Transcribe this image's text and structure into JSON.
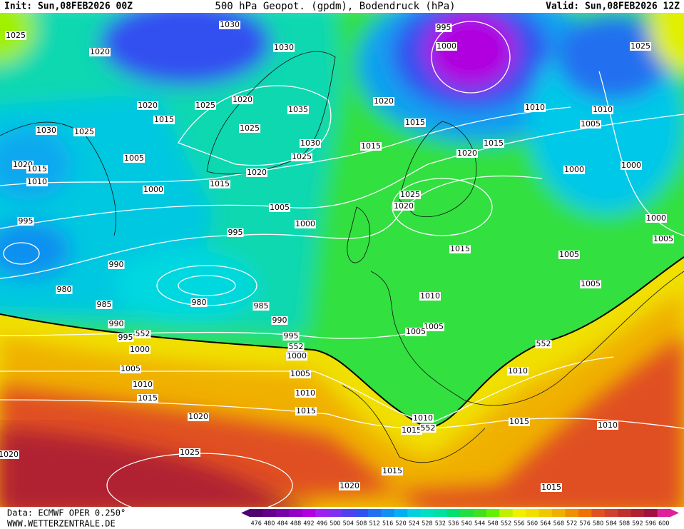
{
  "header": {
    "init": "Init: Sun,08FEB2026 00Z",
    "title": "500 hPa Geopot. (gpdm), Bodendruck (hPa)",
    "valid": "Valid: Sun,08FEB2026 12Z"
  },
  "footer": {
    "source": "Data: ECMWF OPER 0.250°",
    "site": "WWW.WETTERZENTRALE.DE"
  },
  "colorbar": {
    "labels": [
      476,
      480,
      484,
      488,
      492,
      496,
      500,
      504,
      508,
      512,
      516,
      520,
      524,
      528,
      532,
      536,
      540,
      544,
      548,
      552,
      556,
      560,
      564,
      568,
      572,
      576,
      580,
      584,
      588,
      592,
      596,
      600
    ],
    "colors": [
      "#500070",
      "#64008c",
      "#7800a8",
      "#9400c4",
      "#b000e0",
      "#a020f0",
      "#8030f0",
      "#5040f0",
      "#3050f0",
      "#2070f0",
      "#1090f0",
      "#00b0f0",
      "#00d0e0",
      "#00e0c0",
      "#00e0a0",
      "#00e070",
      "#20e040",
      "#40e020",
      "#60f000",
      "#c0f000",
      "#f0f000",
      "#f0e000",
      "#f0c800",
      "#f0b000",
      "#f09000",
      "#f07000",
      "#e05020",
      "#d04030",
      "#c03030",
      "#b02030",
      "#a01040",
      "#e0209a"
    ]
  },
  "isobar_labels": [
    "1025",
    "1020",
    "1030",
    "1030",
    "995",
    "1000",
    "1025",
    "1020",
    "1025",
    "1020",
    "1015",
    "1025",
    "1035",
    "1020",
    "1015",
    "1010",
    "1010",
    "1005",
    "1030",
    "1025",
    "1030",
    "1015",
    "1015",
    "1020",
    "1025",
    "1005",
    "1020",
    "1015",
    "1020",
    "1000",
    "1000",
    "1010",
    "1015",
    "1000",
    "1025",
    "1020",
    "1005",
    "995",
    "1000",
    "995",
    "1000",
    "1005",
    "1015",
    "1005",
    "990",
    "980",
    "1005",
    "980",
    "985",
    "985",
    "1010",
    "990",
    "990",
    "1005",
    "1005",
    "995",
    "995",
    "552",
    "552",
    "1000",
    "1000",
    "552",
    "1005",
    "1005",
    "1010",
    "1010",
    "1010",
    "1015",
    "1015",
    "1020",
    "1010",
    "1015",
    "1015",
    "552",
    "1010",
    "1025",
    "1020",
    "1015",
    "1020",
    "1015"
  ]
}
